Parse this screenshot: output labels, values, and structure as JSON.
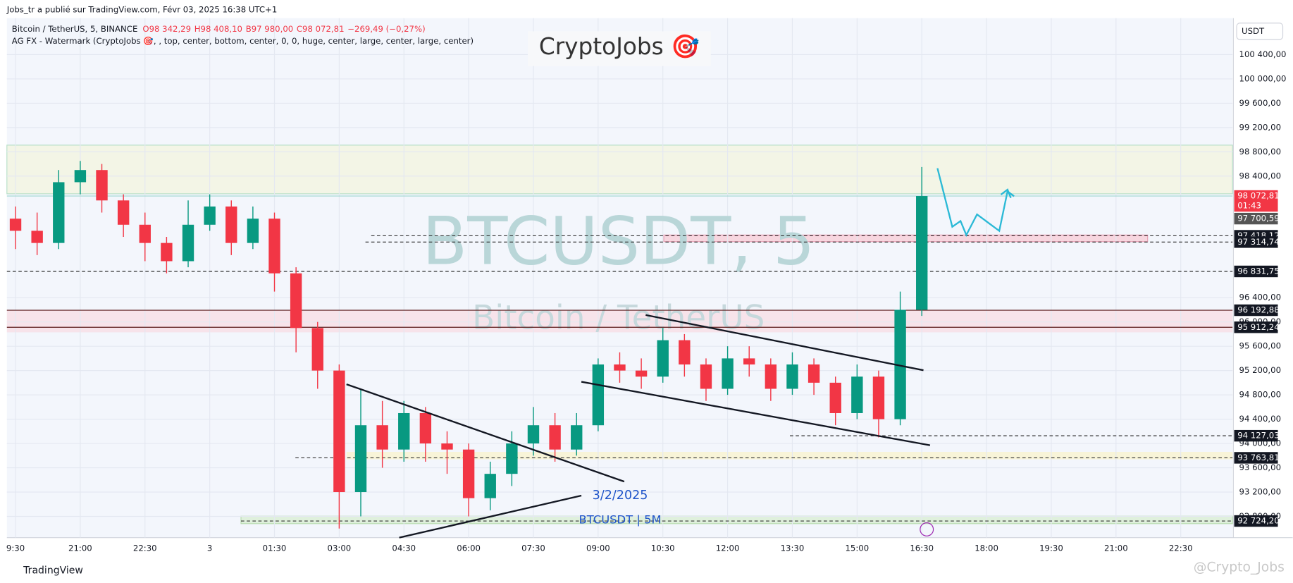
{
  "header": {
    "published": "Jobs_tr a publié sur TradingView.com, Févr 03, 2025 16:38 UTC+1",
    "symbol": "Bitcoin / TetherUS, 5, BINANCE",
    "open": "O98 342,29",
    "high": "H98 408,10",
    "low": "B97 980,00",
    "close": "C98 072,81",
    "change": "−269,49 (−0,27%)",
    "indicator": "AG FX - Watermark (CryptoJobs 🎯, , top, center, bottom, center, 0, 0, huge, center, large, center, large, center)",
    "currency": "USDT"
  },
  "watermark": {
    "brand": "CryptoJobs 🎯",
    "symbol": "BTCUSDT, 5",
    "name": "Bitcoin / TetherUS"
  },
  "annotations": {
    "date": "3/2/2025",
    "tag": "BTCUSDT | 5M",
    "countdown": "01:43"
  },
  "footer": {
    "logo": "TradingView",
    "credit": "@Crypto_Jobs"
  },
  "chart_data": {
    "type": "candlestick",
    "up_color": "#089981",
    "down_color": "#f23645",
    "x": [
      0,
      0.5,
      1,
      1.5,
      2,
      2.5,
      3,
      3.5,
      4,
      4.5,
      5,
      5.5,
      6,
      6.5,
      7,
      7.5,
      8,
      8.5,
      9,
      9.5,
      10,
      10.5,
      11,
      11.5,
      12,
      12.5,
      13,
      13.5,
      14,
      14.5,
      15,
      15.5,
      16,
      16.5,
      17,
      17.5,
      18,
      18.5,
      19,
      19.5,
      20,
      20.5,
      21
    ],
    "open": [
      97700,
      97500,
      97300,
      98300,
      98500,
      98000,
      97600,
      97300,
      97000,
      97600,
      97900,
      97300,
      97700,
      96800,
      95900,
      95200,
      93200,
      94300,
      93900,
      94500,
      94000,
      93900,
      93100,
      93500,
      94000,
      94300,
      93900,
      94300,
      95300,
      95200,
      95100,
      95700,
      95300,
      94900,
      95400,
      95300,
      94900,
      95300,
      95000,
      94500,
      95100,
      94400,
      96200
    ],
    "high": [
      97900,
      97800,
      98500,
      98650,
      98600,
      98100,
      97800,
      97400,
      98000,
      98100,
      98000,
      97900,
      97800,
      96900,
      96000,
      95300,
      94900,
      94700,
      94700,
      94600,
      94200,
      94000,
      93700,
      94200,
      94600,
      94500,
      94500,
      95400,
      95500,
      95400,
      95900,
      95800,
      95400,
      95600,
      95600,
      95400,
      95500,
      95400,
      95100,
      95300,
      95200,
      96500,
      98550
    ],
    "low": [
      97200,
      97100,
      97200,
      98100,
      97800,
      97400,
      97000,
      96800,
      96900,
      97500,
      97100,
      97200,
      96500,
      95500,
      94900,
      92600,
      92800,
      93600,
      93700,
      93700,
      93500,
      92800,
      92900,
      93300,
      93800,
      93700,
      93800,
      94200,
      95000,
      94900,
      95000,
      95100,
      94700,
      94800,
      95100,
      94700,
      94800,
      94800,
      94300,
      94400,
      94100,
      94300,
      96100
    ],
    "close": [
      97500,
      97300,
      98300,
      98500,
      98000,
      97600,
      97300,
      97000,
      97600,
      97900,
      97300,
      97700,
      96800,
      95900,
      95200,
      93200,
      94300,
      93900,
      94500,
      94000,
      93900,
      93100,
      93500,
      94000,
      94300,
      93900,
      94300,
      95300,
      95200,
      95100,
      95700,
      95300,
      94900,
      95400,
      95300,
      94900,
      95300,
      95000,
      94500,
      95100,
      94400,
      96200,
      98072.81
    ],
    "xlim": [
      -0.2,
      28.2
    ],
    "xticks": [
      {
        "value": 0,
        "label": "9:30"
      },
      {
        "value": 1.5,
        "label": "21:00"
      },
      {
        "value": 3,
        "label": "22:30"
      },
      {
        "value": 4.5,
        "label": "3"
      },
      {
        "value": 6,
        "label": "01:30"
      },
      {
        "value": 7.5,
        "label": "03:00"
      },
      {
        "value": 9,
        "label": "04:30"
      },
      {
        "value": 10.5,
        "label": "06:00"
      },
      {
        "value": 12,
        "label": "07:30"
      },
      {
        "value": 13.5,
        "label": "09:00"
      },
      {
        "value": 15,
        "label": "10:30"
      },
      {
        "value": 16.5,
        "label": "12:00"
      },
      {
        "value": 18,
        "label": "13:30"
      },
      {
        "value": 19.5,
        "label": "15:00"
      },
      {
        "value": 21,
        "label": "16:30"
      },
      {
        "value": 22.5,
        "label": "18:00"
      },
      {
        "value": 24,
        "label": "19:30"
      },
      {
        "value": 25.5,
        "label": "21:00"
      },
      {
        "value": 27,
        "label": "22:30"
      }
    ],
    "ylim": [
      92450,
      101000
    ],
    "yticks": [
      {
        "value": 92800,
        "label": "92 800,00"
      },
      {
        "value": 93200,
        "label": "93 200,00"
      },
      {
        "value": 93600,
        "label": "93 600,00"
      },
      {
        "value": 94000,
        "label": "94 000,00"
      },
      {
        "value": 94400,
        "label": "94 400,00"
      },
      {
        "value": 94800,
        "label": "94 800,00"
      },
      {
        "value": 95200,
        "label": "95 200,00"
      },
      {
        "value": 95600,
        "label": "95 600,00"
      },
      {
        "value": 96000,
        "label": "96 000,00"
      },
      {
        "value": 96400,
        "label": "96 400,00"
      },
      {
        "value": 98400,
        "label": "98 400,00"
      },
      {
        "value": 98800,
        "label": "98 800,00"
      },
      {
        "value": 99200,
        "label": "99 200,00"
      },
      {
        "value": 99600,
        "label": "99 600,00"
      },
      {
        "value": 100000,
        "label": "100 000,00"
      },
      {
        "value": 100400,
        "label": "100 400,00"
      }
    ],
    "grid": true,
    "price_levels": [
      {
        "value": 98072.81,
        "label": "98 072,81",
        "color": "#f23645",
        "style": "solid"
      },
      {
        "value": 97700.59,
        "label": "97 700,59",
        "color": "#555555",
        "style": "none"
      },
      {
        "value": 97418.12,
        "label": "97 418,12",
        "color": "#131722",
        "style": "dashed"
      },
      {
        "value": 97314.74,
        "label": "97 314,74",
        "color": "#131722",
        "style": "dashed"
      },
      {
        "value": 96831.75,
        "label": "96 831,75",
        "color": "#131722",
        "style": "dashed"
      },
      {
        "value": 96192.88,
        "label": "96 192,88",
        "color": "#131722",
        "style": "solid"
      },
      {
        "value": 95912.24,
        "label": "95 912,24",
        "color": "#131722",
        "style": "solid"
      },
      {
        "value": 94127.03,
        "label": "94 127,03",
        "color": "#131722",
        "style": "dashed"
      },
      {
        "value": 93763.81,
        "label": "93 763,81",
        "color": "#131722",
        "style": "dashed"
      },
      {
        "value": 92724.2,
        "label": "92 724,20",
        "color": "#131722",
        "style": "dashed"
      }
    ]
  }
}
